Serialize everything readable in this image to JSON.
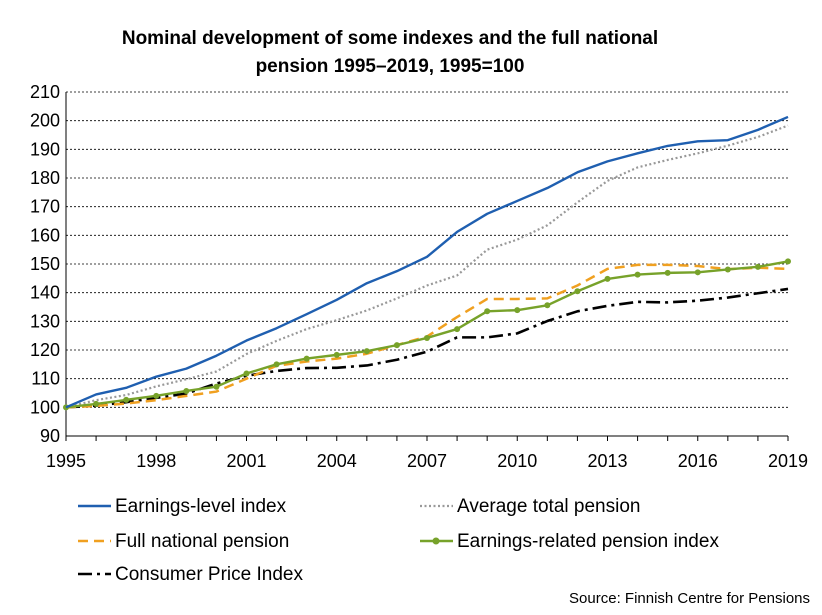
{
  "chart_data": {
    "type": "line",
    "title": "Nominal development of some indexes and the full national pension 1995–2019, 1995=100",
    "title_line1": "Nominal development of some indexes and the full national",
    "title_line2": "pension 1995–2019, 1995=100",
    "xlabel": "",
    "ylabel": "",
    "ylim": [
      90,
      210
    ],
    "xlim": [
      1995,
      2019
    ],
    "y_ticks": [
      "90",
      "100",
      "110",
      "120",
      "130",
      "140",
      "150",
      "160",
      "170",
      "180",
      "190",
      "200",
      "210"
    ],
    "x_ticks": [
      "1995",
      "1998",
      "2001",
      "2004",
      "2007",
      "2010",
      "2013",
      "2016",
      "2019"
    ],
    "grid": "horizontal dotted",
    "legend_position": "bottom",
    "x": [
      1995,
      1996,
      1997,
      1998,
      1999,
      2000,
      2001,
      2002,
      2003,
      2004,
      2005,
      2006,
      2007,
      2008,
      2009,
      2010,
      2011,
      2012,
      2013,
      2014,
      2015,
      2016,
      2017,
      2018,
      2019
    ],
    "series": [
      {
        "name": "Earnings-level  index",
        "color": "#1f5fb0",
        "style": "solid",
        "values": [
          100,
          104.5,
          106.8,
          110.7,
          113.5,
          118,
          123.3,
          127.6,
          132.5,
          137.5,
          143.3,
          147.5,
          152.5,
          161.2,
          167.5,
          172,
          176.5,
          182,
          185.8,
          188.6,
          191.2,
          192.8,
          193.2,
          196.8,
          201.3
        ]
      },
      {
        "name": "Average total pension",
        "color": "#999999",
        "style": "dotted",
        "values": [
          100,
          102.5,
          104.3,
          107.3,
          109.8,
          112.5,
          118.6,
          123.2,
          127.3,
          130.4,
          133.8,
          138,
          142.5,
          146,
          155,
          158.5,
          163.5,
          171.5,
          179,
          183.7,
          186.3,
          188.6,
          191.3,
          194.3,
          198.3
        ]
      },
      {
        "name": "Full national pension",
        "color": "#f0a020",
        "style": "dashed",
        "values": [
          100,
          100.5,
          101.3,
          102.5,
          104,
          105.5,
          110,
          114.5,
          116,
          117,
          118.7,
          121.7,
          124.7,
          131.5,
          137.8,
          137.8,
          138,
          142.5,
          148.3,
          149.7,
          149.7,
          149.3,
          148.2,
          148.7,
          148.3
        ]
      },
      {
        "name": "Earnings-related pension index",
        "color": "#77a22a",
        "style": "solid-marker",
        "values": [
          100,
          101.2,
          102.6,
          104,
          105.7,
          107.2,
          111.8,
          115,
          117,
          118.3,
          119.6,
          121.7,
          124.2,
          127.3,
          133.5,
          133.9,
          135.6,
          140.5,
          144.8,
          146.3,
          146.9,
          147.1,
          148.1,
          149,
          150.9
        ]
      },
      {
        "name": "Consumer Price Index",
        "color": "#000000",
        "style": "dash-dot",
        "values": [
          100,
          100.6,
          101.8,
          103.3,
          104.8,
          108.3,
          111,
          112.7,
          113.7,
          113.8,
          114.6,
          116.6,
          119.4,
          124.4,
          124.4,
          125.8,
          130.1,
          133.5,
          135.4,
          136.8,
          136.6,
          137.2,
          138.3,
          139.8,
          141.3
        ]
      }
    ],
    "source": "Source: Finnish Centre for Pensions"
  }
}
